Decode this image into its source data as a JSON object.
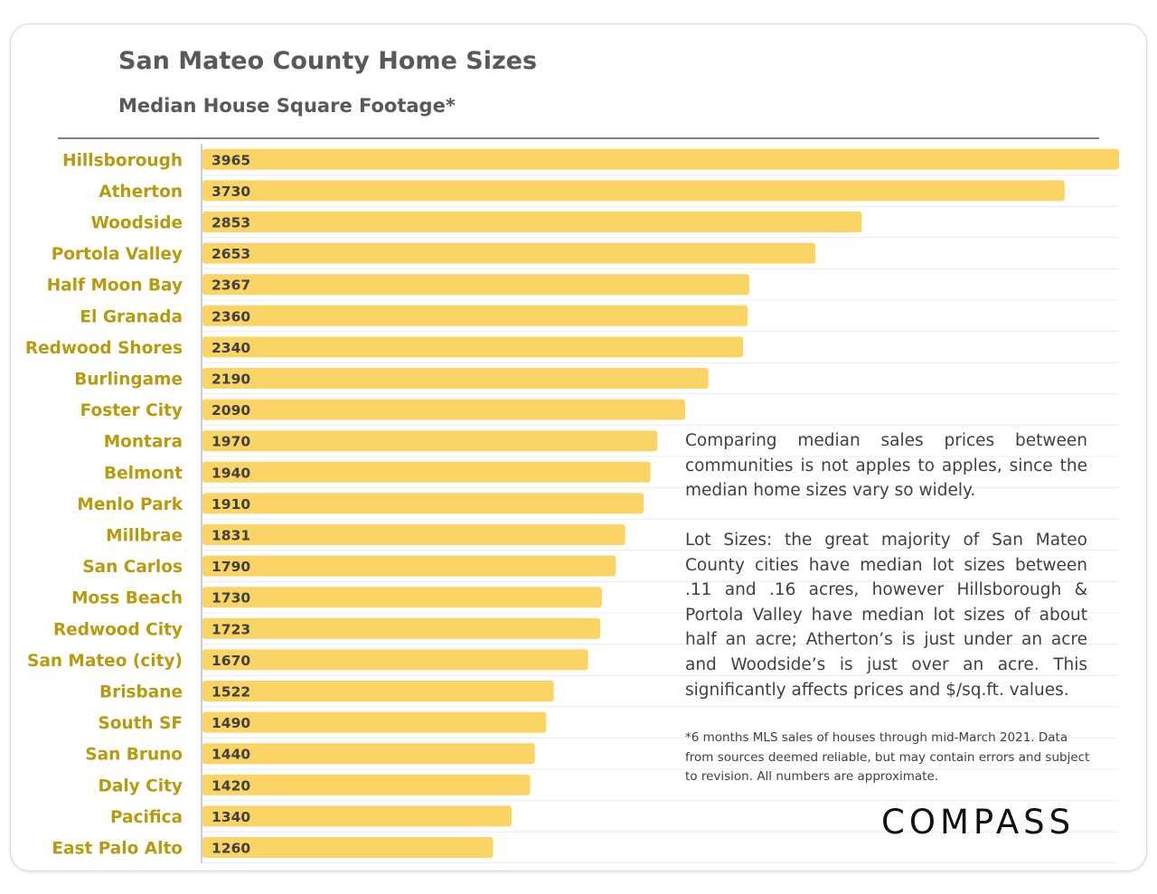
{
  "title": "San Mateo County Home Sizes",
  "subtitle": "Median House Square Footage*",
  "notes": {
    "p1": "Comparing median sales prices between communities is not apples to apples, since the median home sizes vary so widely.",
    "p2": "Lot Sizes: the great majority of San Mateo County cities have median lot sizes between .11 and .16 acres, however Hillsborough & Portola Valley have median lot sizes of about half an acre; Atherton’s is just under an acre and Woodside’s is just over an acre. This significantly affects prices and $/sq.ft. values.",
    "footnote": "*6 months MLS sales of houses through mid-March 2021. Data from sources deemed reliable, but may contain errors and subject to revision. All numbers are approximate."
  },
  "logo": "COMPASS",
  "colors": {
    "bar": "#fad465",
    "label": "#b99a0d",
    "value_text": "#404040",
    "gridline": "#ececec",
    "axis": "#bfbfbf"
  },
  "chart_data": {
    "type": "bar",
    "orientation": "horizontal",
    "title": "San Mateo County Home Sizes",
    "subtitle": "Median House Square Footage*",
    "categories": [
      "Hillsborough",
      "Atherton",
      "Woodside",
      "Portola Valley",
      "Half Moon Bay",
      "El Granada",
      "Redwood Shores",
      "Burlingame",
      "Foster City",
      "Montara",
      "Belmont",
      "Menlo Park",
      "Millbrae",
      "San Carlos",
      "Moss Beach",
      "Redwood City",
      "San Mateo (city)",
      "Brisbane",
      "South SF",
      "San Bruno",
      "Daly City",
      "Pacifica",
      "East Palo Alto"
    ],
    "values": [
      3965,
      3730,
      2853,
      2653,
      2367,
      2360,
      2340,
      2190,
      2090,
      1970,
      1940,
      1910,
      1831,
      1790,
      1730,
      1723,
      1670,
      1522,
      1490,
      1440,
      1420,
      1340,
      1260
    ],
    "value_labels": [
      "3965",
      "3730",
      "2853",
      "2653",
      "2367",
      "2360",
      "2340",
      "2190",
      "2090",
      "1970",
      "1940",
      "1910",
      "1831",
      "1790",
      "1730",
      "1723",
      "1670",
      "1522",
      "1490",
      "1440",
      "1420",
      "1340",
      "1260"
    ],
    "xlim": [
      0,
      3965
    ],
    "grid": true,
    "legend": "none"
  }
}
